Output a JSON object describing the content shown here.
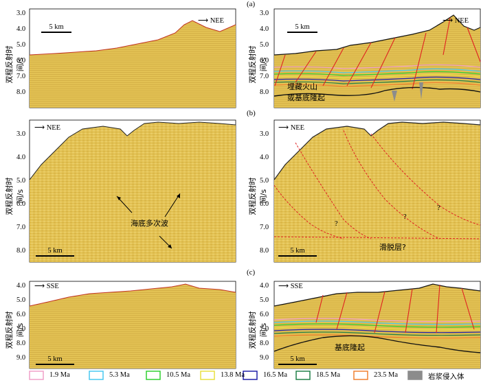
{
  "figure": {
    "panel_labels": {
      "a": "(a)",
      "b": "(b)",
      "c": "(c)"
    },
    "y_axis_label": "双程反射时间/s",
    "scale_label": "5 km",
    "direction": {
      "nee": "NEE",
      "sse": "SSE"
    },
    "ticks": {
      "a": [
        "3.0",
        "4.0",
        "5.0",
        "6.0",
        "7.0",
        "8.0"
      ],
      "b": [
        "3.0",
        "4.0",
        "5.0",
        "6.0",
        "7.0",
        "8.0"
      ],
      "c": [
        "4.0",
        "5.0",
        "6.0",
        "7.0",
        "8.0",
        "9.0"
      ]
    },
    "annotations": {
      "a_volcano": [
        "埋藏火山",
        "或基底隆起"
      ],
      "b_multiple": "海底多次波",
      "b_question": "?",
      "b_detachment": "滑脱层?",
      "c_basement": "基底隆起"
    }
  },
  "legend": [
    {
      "label": "1.9 Ma",
      "color": "#f0a0c8"
    },
    {
      "label": "5.3 Ma",
      "color": "#48c8f0"
    },
    {
      "label": "10.5 Ma",
      "color": "#30d030"
    },
    {
      "label": "13.8 Ma",
      "color": "#e8e040"
    },
    {
      "label": "16.5 Ma",
      "color": "#2020a8"
    },
    {
      "label": "18.5 Ma",
      "color": "#208048"
    },
    {
      "label": "23.5 Ma",
      "color": "#f08030"
    },
    {
      "label": "岩浆侵入体",
      "color": "#8c8c8c"
    }
  ],
  "colors": {
    "seismic": "#e3c254",
    "fault": "#e02020",
    "basement": "#111111"
  }
}
